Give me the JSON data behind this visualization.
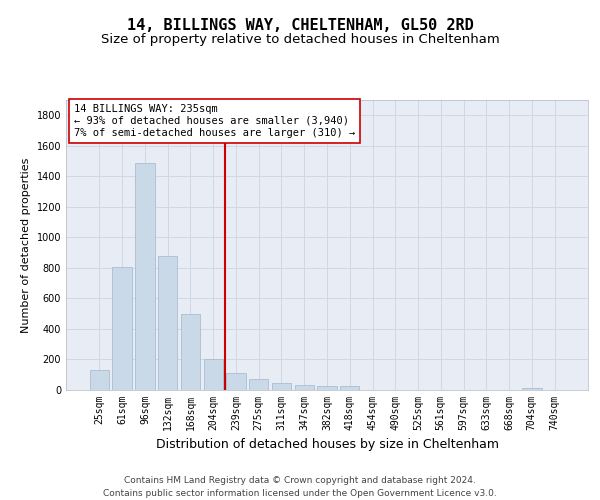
{
  "title": "14, BILLINGS WAY, CHELTENHAM, GL50 2RD",
  "subtitle": "Size of property relative to detached houses in Cheltenham",
  "xlabel": "Distribution of detached houses by size in Cheltenham",
  "ylabel": "Number of detached properties",
  "categories": [
    "25sqm",
    "61sqm",
    "96sqm",
    "132sqm",
    "168sqm",
    "204sqm",
    "239sqm",
    "275sqm",
    "311sqm",
    "347sqm",
    "382sqm",
    "418sqm",
    "454sqm",
    "490sqm",
    "525sqm",
    "561sqm",
    "597sqm",
    "633sqm",
    "668sqm",
    "704sqm",
    "740sqm"
  ],
  "bar_heights": [
    130,
    805,
    1490,
    875,
    495,
    205,
    110,
    70,
    45,
    35,
    25,
    25,
    0,
    0,
    0,
    0,
    0,
    0,
    0,
    15,
    0
  ],
  "bar_color": "#c9d9e8",
  "bar_edgecolor": "#a0b8cc",
  "vline_color": "#cc0000",
  "vline_x_index": 6,
  "annotation_text": "14 BILLINGS WAY: 235sqm\n← 93% of detached houses are smaller (3,940)\n7% of semi-detached houses are larger (310) →",
  "annotation_box_edgecolor": "#cc0000",
  "ylim": [
    0,
    1900
  ],
  "yticks": [
    0,
    200,
    400,
    600,
    800,
    1000,
    1200,
    1400,
    1600,
    1800
  ],
  "grid_color": "#cdd5e0",
  "bg_color": "#e8ecf4",
  "footer_line1": "Contains HM Land Registry data © Crown copyright and database right 2024.",
  "footer_line2": "Contains public sector information licensed under the Open Government Licence v3.0.",
  "title_fontsize": 11,
  "subtitle_fontsize": 9.5,
  "xlabel_fontsize": 9,
  "ylabel_fontsize": 8,
  "tick_fontsize": 7,
  "annotation_fontsize": 7.5,
  "footer_fontsize": 6.5
}
